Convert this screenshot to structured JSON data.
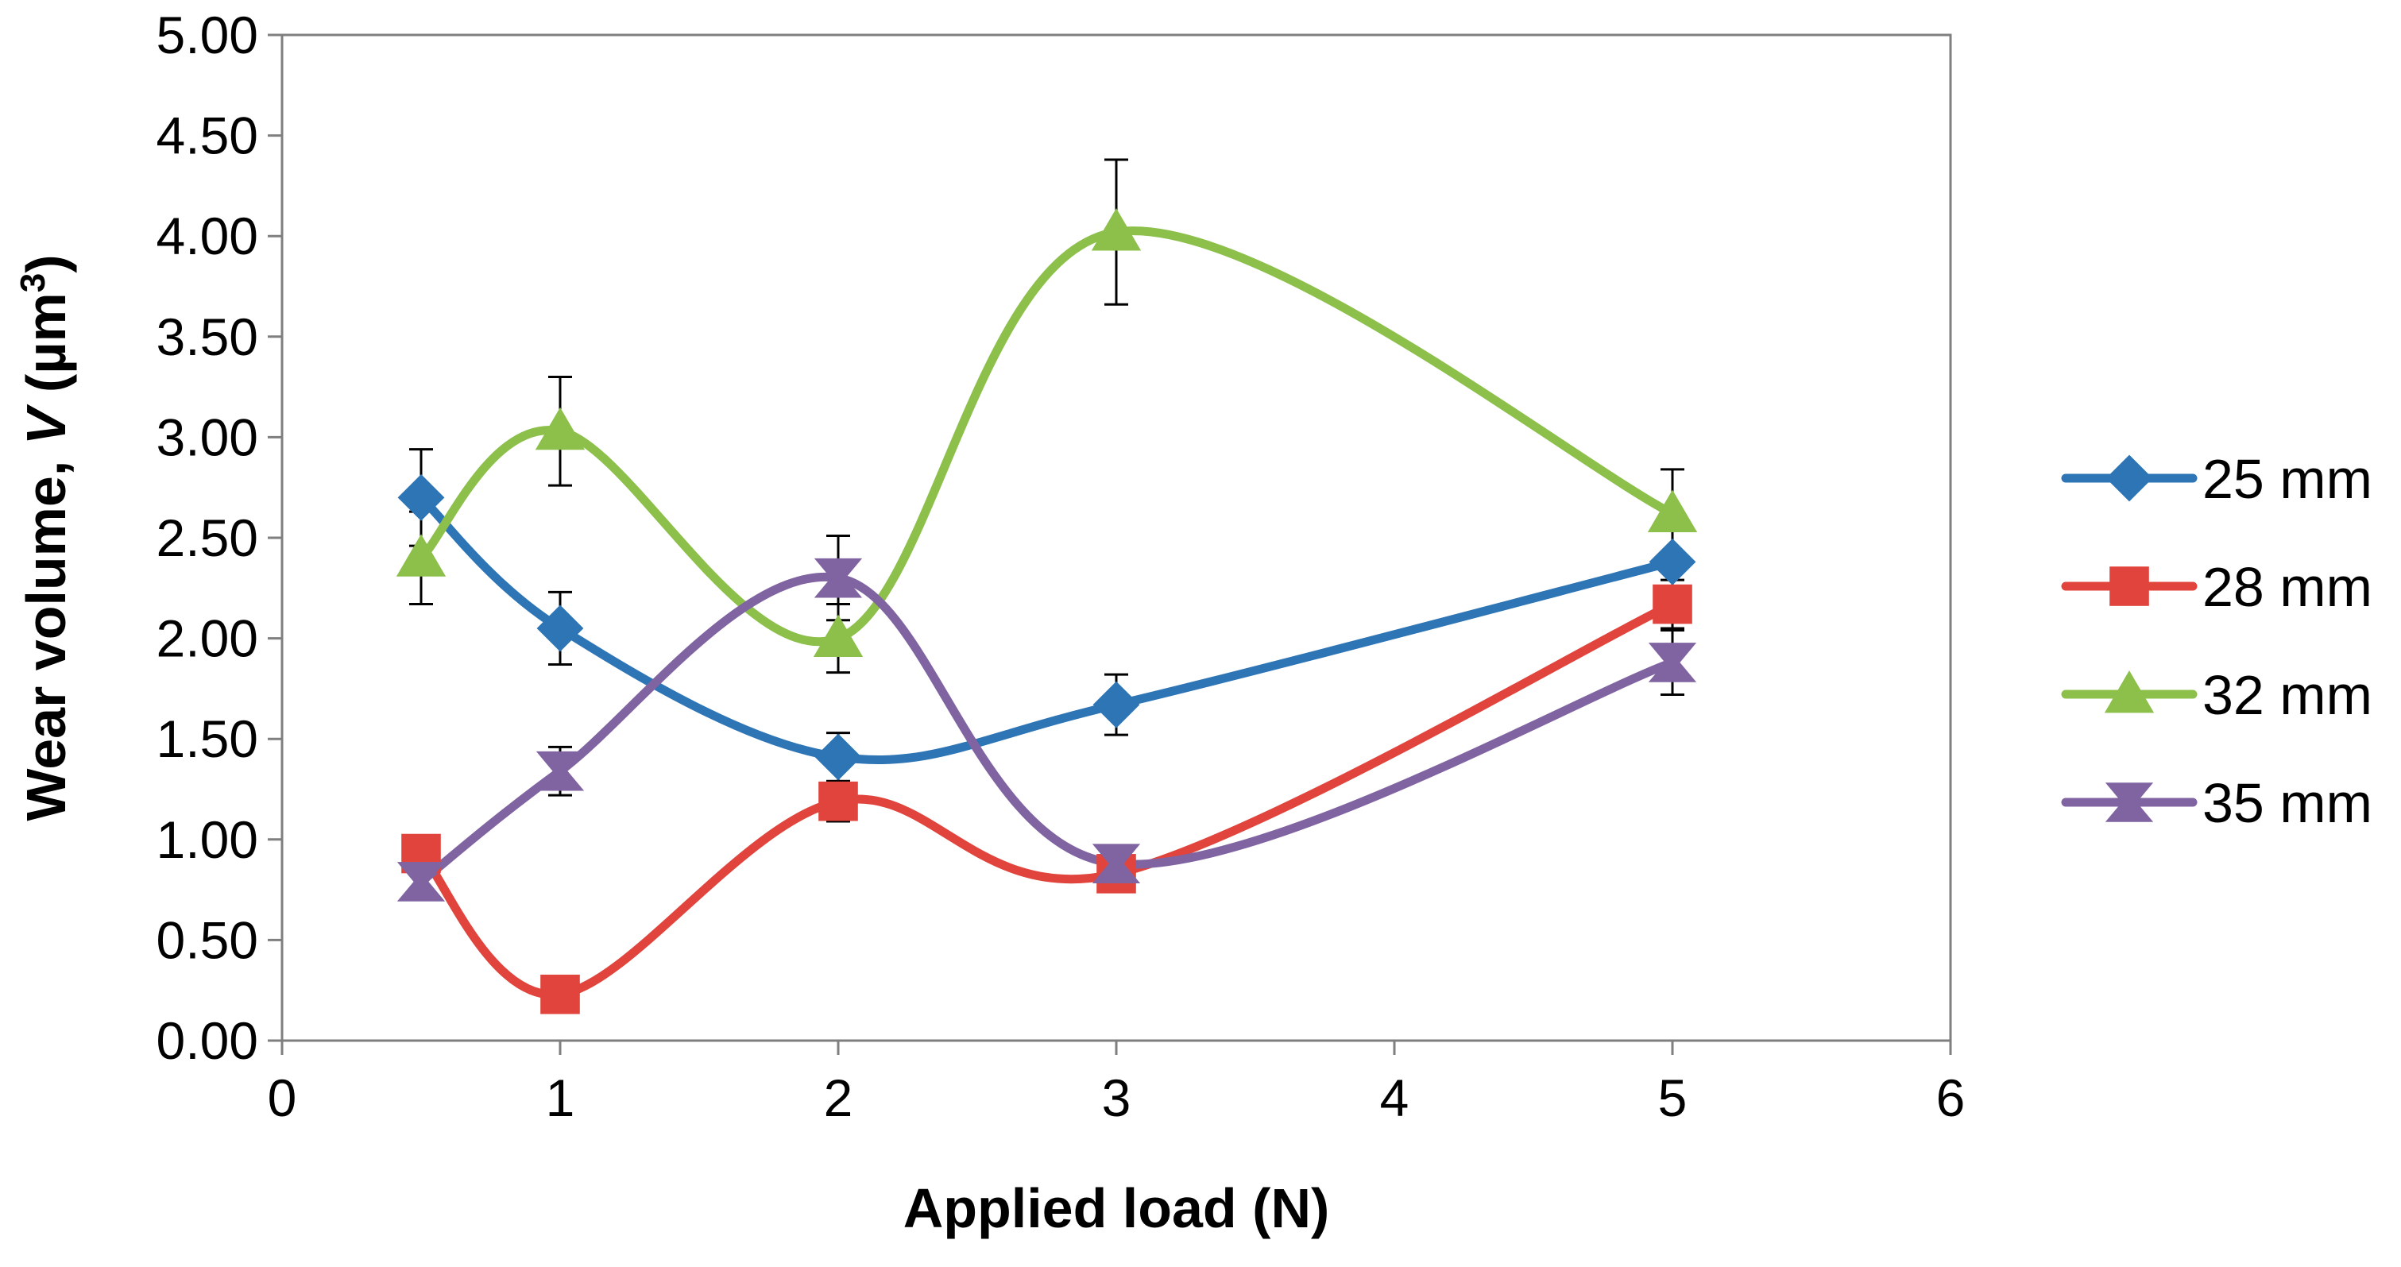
{
  "chart_data": {
    "type": "line",
    "title": "",
    "xlabel": "Applied load (N)",
    "ylabel": {
      "prefix": "Wear volume, ",
      "var": "V",
      "unit_open": " (µm",
      "unit_sup": "3",
      "unit_close": ")"
    },
    "xlim": [
      0,
      6
    ],
    "ylim": [
      0,
      5
    ],
    "xticks": [
      0,
      1,
      2,
      3,
      4,
      5,
      6
    ],
    "xtick_labels": [
      "0",
      "1",
      "2",
      "3",
      "4",
      "5",
      "6"
    ],
    "yticks": [
      0,
      0.5,
      1,
      1.5,
      2,
      2.5,
      3,
      3.5,
      4,
      4.5,
      5
    ],
    "ytick_labels": [
      "0.00",
      "0.50",
      "1.00",
      "1.50",
      "2.00",
      "2.50",
      "3.00",
      "3.50",
      "4.00",
      "4.50",
      "5.00"
    ],
    "grid": false,
    "legend": "right",
    "x": [
      0.5,
      1,
      2,
      3,
      5
    ],
    "series": [
      {
        "name": "25 mm",
        "color": "#2E75B6",
        "marker": "diamond",
        "values": [
          2.7,
          2.05,
          1.41,
          1.67,
          2.38
        ],
        "errors": [
          0.24,
          0.18,
          0.12,
          0.15,
          null
        ]
      },
      {
        "name": "28 mm",
        "color": "#E0443C",
        "marker": "square",
        "values": [
          0.93,
          0.23,
          1.19,
          0.83,
          2.17
        ],
        "errors": [
          null,
          null,
          0.1,
          null,
          0.12
        ]
      },
      {
        "name": "32 mm",
        "color": "#8CC04B",
        "marker": "triangle",
        "values": [
          2.4,
          3.03,
          2.0,
          4.02,
          2.62
        ],
        "errors": [
          0.23,
          0.27,
          0.17,
          0.36,
          0.22
        ]
      },
      {
        "name": "35 mm",
        "color": "#8064A2",
        "marker": "star",
        "values": [
          0.79,
          1.34,
          2.3,
          0.88,
          1.88
        ],
        "errors": [
          null,
          0.12,
          0.21,
          null,
          0.16
        ]
      }
    ]
  }
}
